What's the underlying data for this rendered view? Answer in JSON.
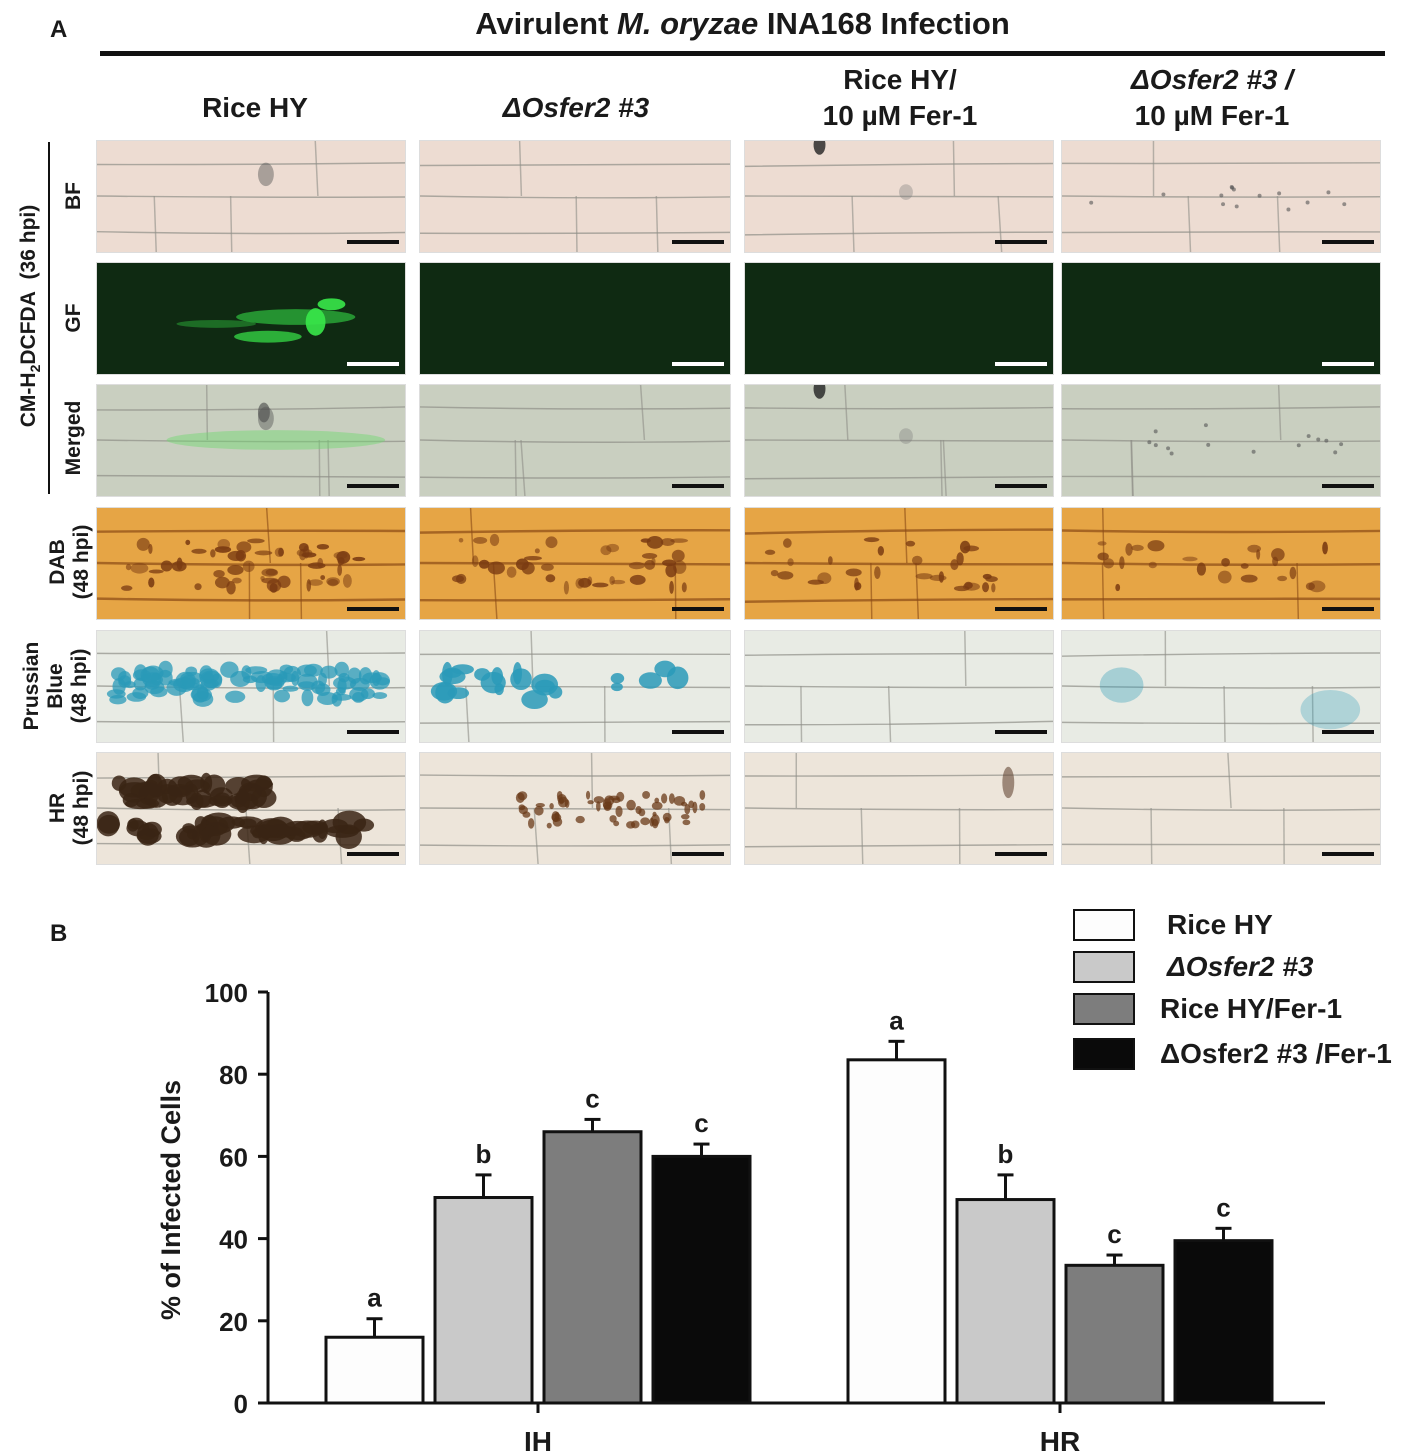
{
  "figure": {
    "panel_a_label": "A",
    "panel_b_label": "B",
    "header": {
      "prefix": "Avirulent",
      "species": "M. oryzae",
      "suffix": "INA168 Infection"
    },
    "columns": [
      {
        "line1": "Rice HY",
        "line2": "",
        "italic": false
      },
      {
        "line1": "ΔOsfer2 #3",
        "line2": "",
        "italic": true
      },
      {
        "line1": "Rice HY/",
        "line2": "10 µM Fer-1",
        "italic": false
      },
      {
        "line1": "ΔOsfer2 #3 /",
        "line2": "10 µM Fer-1",
        "italic": true
      }
    ],
    "group_label": {
      "main": "CM-H",
      "sub": "2",
      "rest": "DCFDA",
      "time": "(36 hpi)"
    },
    "rows": [
      {
        "label": "BF",
        "label2": ""
      },
      {
        "label": "GF",
        "label2": ""
      },
      {
        "label": "Merged",
        "label2": ""
      },
      {
        "label": "DAB",
        "label2": "(48 hpi)"
      },
      {
        "label": "Prussian",
        "label2": "Blue",
        "label3": "(48 hpi)"
      },
      {
        "label": "HR",
        "label2": "(48 hpi)"
      }
    ],
    "colors": {
      "bf_bg": "#eddcd2",
      "gf_bg": "#0f2a12",
      "gf_signal": "#39e84a",
      "merged_bg": "#c9cfc0",
      "dab_bg": "#e6a545",
      "dab_stain": "#7a3b12",
      "prussian_bg": "#e8ebe4",
      "prussian_stain": "#2a9ab8",
      "hr_bg": "#ede5da",
      "hr_stain": "#3a2414"
    }
  },
  "chart_data": {
    "type": "bar",
    "categories": [
      "IH",
      "HR"
    ],
    "series": [
      {
        "name": "Rice HY",
        "values": [
          16,
          83.5
        ],
        "errors": [
          4.5,
          4.5
        ],
        "letters": [
          "a",
          "a"
        ],
        "color": "#fdfdfd"
      },
      {
        "name": "ΔOsfer2 #3",
        "values": [
          50,
          49.5
        ],
        "errors": [
          5.5,
          6
        ],
        "letters": [
          "b",
          "b"
        ],
        "color": "#c9c9c9",
        "italic": true
      },
      {
        "name": "Rice HY/Fer-1",
        "values": [
          66,
          33.5
        ],
        "errors": [
          3,
          2.5
        ],
        "letters": [
          "c",
          "c"
        ],
        "color": "#7d7d7d"
      },
      {
        "name": "ΔOsfer2 #3 /Fer-1",
        "values": [
          60,
          39.5
        ],
        "errors": [
          3,
          3
        ],
        "letters": [
          "c",
          "c"
        ],
        "color": "#0a0a0a",
        "italic": true
      }
    ],
    "ylabel": "% of Infected Cells",
    "xlabel": "",
    "ylim": [
      0,
      100
    ],
    "yticks": [
      0,
      20,
      40,
      60,
      80,
      100
    ],
    "legend_position": "top-right",
    "grid": false
  }
}
